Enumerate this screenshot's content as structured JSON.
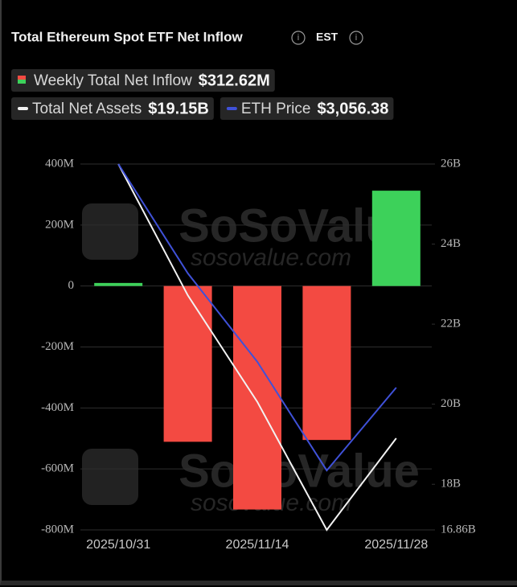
{
  "chart_data": {
    "type": "combo",
    "title": "Total Ethereum Spot ETF Net Inflow",
    "timezone": "EST",
    "categories": [
      "2025/10/31",
      null,
      "2025/11/14",
      null,
      "2025/11/28"
    ],
    "watermark": {
      "brand": "SoSoValue",
      "url": "sosovalue.com"
    },
    "series": [
      {
        "name": "Weekly Total Net Inflow",
        "type": "bar",
        "colors": {
          "positive": "#3dd15a",
          "negative": "#f34a42"
        },
        "values": [
          10000000,
          -511000000,
          -733000000,
          -505000000,
          312620000
        ],
        "value_labels": [
          null,
          null,
          null,
          null,
          "$312.62M"
        ]
      },
      {
        "name": "Total Net Assets",
        "type": "line",
        "axis": "y2",
        "color": "#f2f2f2",
        "values": [
          26000000000,
          22720000000,
          20060000000,
          16860000000,
          19150000000
        ],
        "value_labels": [
          null,
          null,
          null,
          null,
          "$19.15B"
        ]
      },
      {
        "name": "ETH Price",
        "type": "line",
        "axis": "y3",
        "color": "#3f51d8",
        "values": [
          3850,
          3462,
          3148,
          2762,
          3056.38
        ],
        "value_labels": [
          null,
          null,
          null,
          null,
          "$3,056.38"
        ]
      }
    ],
    "ylim": [
      -800000000,
      400000000
    ],
    "yticks": [
      {
        "value": 400000000,
        "label": "400M"
      },
      {
        "value": 200000000,
        "label": "200M"
      },
      0,
      {
        "value": -200000000,
        "label": "-200M"
      },
      {
        "value": -400000000,
        "label": "-400M"
      },
      {
        "value": -600000000,
        "label": "-600M"
      },
      {
        "value": -800000000,
        "label": "-800M"
      }
    ],
    "y2lim": [
      16860000000,
      26000000000
    ],
    "y2ticks": [
      {
        "value": 26000000000,
        "label": "26B"
      },
      {
        "value": 24000000000,
        "label": "24B"
      },
      {
        "value": 22000000000,
        "label": "22B"
      },
      {
        "value": 20000000000,
        "label": "20B"
      },
      {
        "value": 18000000000,
        "label": "18B"
      },
      {
        "value": 16860000000,
        "label": "16.86B"
      }
    ],
    "y3lim": [
      2551,
      3850
    ],
    "grid": true
  }
}
